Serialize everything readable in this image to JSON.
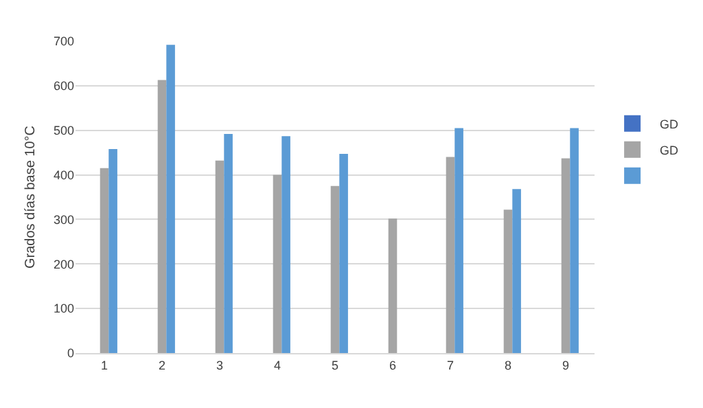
{
  "chart_data": {
    "type": "bar",
    "ylabel": "Grados días base 10°C",
    "categories": [
      "1",
      "2",
      "3",
      "4",
      "5",
      "6",
      "7",
      "8",
      "9"
    ],
    "series": [
      {
        "name": "GD",
        "color": "#4472c4",
        "values": [
          null,
          null,
          null,
          null,
          null,
          null,
          null,
          null,
          null
        ]
      },
      {
        "name": "GD",
        "color": "#a5a5a5",
        "values": [
          415,
          613,
          432,
          400,
          375,
          302,
          440,
          322,
          437
        ]
      },
      {
        "color": "#5b9bd5",
        "values": [
          458,
          692,
          492,
          487,
          447,
          null,
          505,
          368,
          505
        ]
      }
    ],
    "ylim": [
      0,
      700
    ],
    "yticks": [
      0,
      100,
      200,
      300,
      400,
      500,
      600,
      700
    ],
    "grid": "y",
    "legend": "right"
  }
}
